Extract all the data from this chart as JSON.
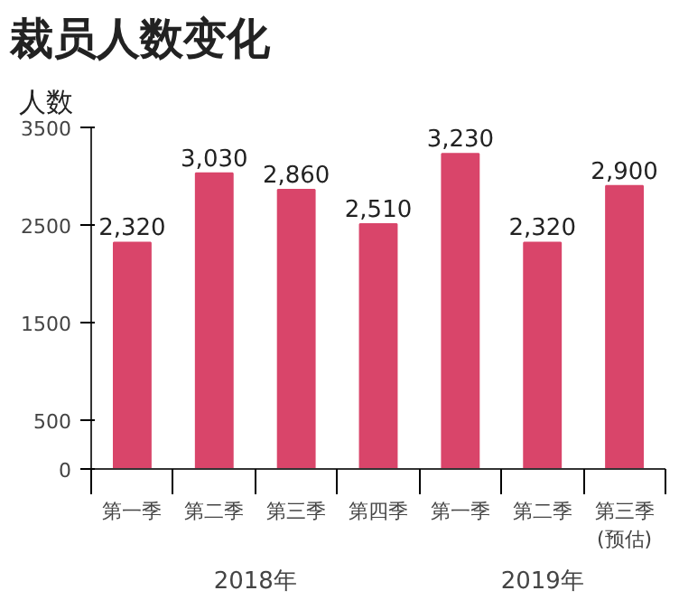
{
  "chart_data": {
    "type": "bar",
    "title": "裁员人数变化",
    "ylabel": "人数",
    "categories": [
      "第一季",
      "第二季",
      "第三季",
      "第四季",
      "第一季",
      "第二季",
      "第三季\n(预估)"
    ],
    "values": [
      2320,
      3030,
      2860,
      2510,
      3230,
      2320,
      2900
    ],
    "value_labels": [
      "2,320",
      "3,030",
      "2,860",
      "2,510",
      "3,230",
      "2,320",
      "2,900"
    ],
    "color": "#d9456a",
    "ylim": [
      0,
      3500
    ],
    "yticks": [
      0,
      500,
      1500,
      2500,
      3500
    ],
    "grid": false,
    "annotations": [
      "2018年",
      "2019年"
    ]
  }
}
